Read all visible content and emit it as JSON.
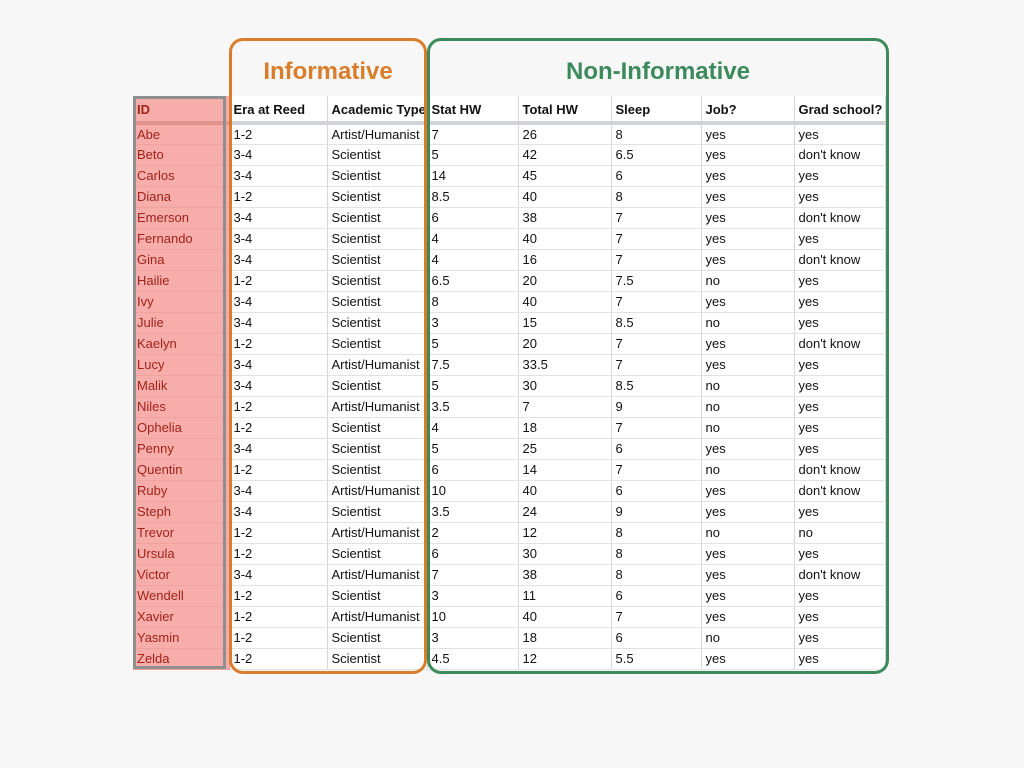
{
  "groups": {
    "informative": "Informative",
    "non_informative": "Non-Informative"
  },
  "colors": {
    "informative": "#d97d2b",
    "non_informative": "#3c8a5b",
    "id_column": "#f7aeaa"
  },
  "table": {
    "columns": [
      "ID",
      "Era at Reed",
      "Academic Type",
      "Stat HW",
      "Total HW",
      "Sleep",
      "Job?",
      "Grad school?"
    ],
    "rows": [
      [
        "Abe",
        "1-2",
        "Artist/Humanist",
        "7",
        "26",
        "8",
        "yes",
        "yes"
      ],
      [
        "Beto",
        "3-4",
        "Scientist",
        "5",
        "42",
        "6.5",
        "yes",
        "don't know"
      ],
      [
        "Carlos",
        "3-4",
        "Scientist",
        "14",
        "45",
        "6",
        "yes",
        "yes"
      ],
      [
        "Diana",
        "1-2",
        "Scientist",
        "8.5",
        "40",
        "8",
        "yes",
        "yes"
      ],
      [
        "Emerson",
        "3-4",
        "Scientist",
        "6",
        "38",
        "7",
        "yes",
        "don't know"
      ],
      [
        "Fernando",
        "3-4",
        "Scientist",
        "4",
        "40",
        "7",
        "yes",
        "yes"
      ],
      [
        "Gina",
        "3-4",
        "Scientist",
        "4",
        "16",
        "7",
        "yes",
        "don't know"
      ],
      [
        "Hailie",
        "1-2",
        "Scientist",
        "6.5",
        "20",
        "7.5",
        "no",
        "yes"
      ],
      [
        "Ivy",
        "3-4",
        "Scientist",
        "8",
        "40",
        "7",
        "yes",
        "yes"
      ],
      [
        "Julie",
        "3-4",
        "Scientist",
        "3",
        "15",
        "8.5",
        "no",
        "yes"
      ],
      [
        "Kaelyn",
        "1-2",
        "Scientist",
        "5",
        "20",
        "7",
        "yes",
        "don't know"
      ],
      [
        "Lucy",
        "3-4",
        "Artist/Humanist",
        "7.5",
        "33.5",
        "7",
        "yes",
        "yes"
      ],
      [
        "Malik",
        "3-4",
        "Scientist",
        "5",
        "30",
        "8.5",
        "no",
        "yes"
      ],
      [
        "Niles",
        "1-2",
        "Artist/Humanist",
        "3.5",
        "7",
        "9",
        "no",
        "yes"
      ],
      [
        "Ophelia",
        "1-2",
        "Scientist",
        "4",
        "18",
        "7",
        "no",
        "yes"
      ],
      [
        "Penny",
        "3-4",
        "Scientist",
        "5",
        "25",
        "6",
        "yes",
        "yes"
      ],
      [
        "Quentin",
        "1-2",
        "Scientist",
        "6",
        "14",
        "7",
        "no",
        "don't know"
      ],
      [
        "Ruby",
        "3-4",
        "Artist/Humanist",
        "10",
        "40",
        "6",
        "yes",
        "don't know"
      ],
      [
        "Steph",
        "3-4",
        "Scientist",
        "3.5",
        "24",
        "9",
        "yes",
        "yes"
      ],
      [
        "Trevor",
        "1-2",
        "Artist/Humanist",
        "2",
        "12",
        "8",
        "no",
        "no"
      ],
      [
        "Ursula",
        "1-2",
        "Scientist",
        "6",
        "30",
        "8",
        "yes",
        "yes"
      ],
      [
        "Victor",
        "3-4",
        "Artist/Humanist",
        "7",
        "38",
        "8",
        "yes",
        "don't know"
      ],
      [
        "Wendell",
        "1-2",
        "Scientist",
        "3",
        "11",
        "6",
        "yes",
        "yes"
      ],
      [
        "Xavier",
        "1-2",
        "Artist/Humanist",
        "10",
        "40",
        "7",
        "yes",
        "yes"
      ],
      [
        "Yasmin",
        "1-2",
        "Scientist",
        "3",
        "18",
        "6",
        "no",
        "yes"
      ],
      [
        "Zelda",
        "1-2",
        "Scientist",
        "4.5",
        "12",
        "5.5",
        "yes",
        "yes"
      ]
    ]
  }
}
